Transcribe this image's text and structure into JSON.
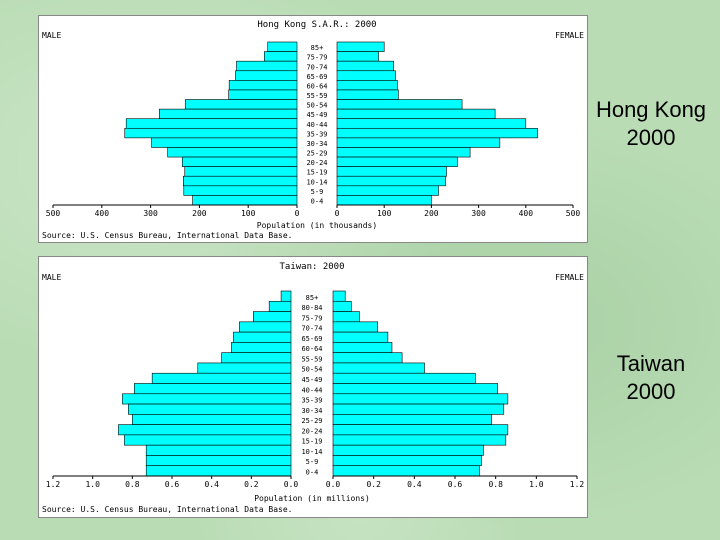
{
  "slides": [
    {
      "line1": "Hong Kong",
      "line2": "2000"
    },
    {
      "line1": "Taiwan",
      "line2": "2000"
    }
  ],
  "chart_data": [
    {
      "type": "bar",
      "title": "Hong Kong S.A.R.: 2000",
      "left_label": "MALE",
      "right_label": "FEMALE",
      "xlabel": "Population (in thousands)",
      "source": "Source: U.S. Census Bureau, International Data Base.",
      "xlim": [
        0,
        500
      ],
      "ticks": [
        "500",
        "400",
        "300",
        "200",
        "100",
        "0",
        "0",
        "100",
        "200",
        "300",
        "400",
        "500"
      ],
      "categories": [
        "85+",
        "75-79",
        "70-74",
        "65-69",
        "60-64",
        "55-59",
        "50-54",
        "45-49",
        "40-44",
        "35-39",
        "30-34",
        "25-29",
        "20-24",
        "15-19",
        "10-14",
        "5-9",
        "0-4"
      ],
      "series": [
        {
          "name": "MALE",
          "values": [
            60,
            67,
            124,
            126,
            139,
            140,
            229,
            282,
            350,
            353,
            298,
            265,
            235,
            230,
            233,
            232,
            214
          ]
        },
        {
          "name": "FEMALE",
          "values": [
            100,
            88,
            120,
            124,
            128,
            130,
            265,
            335,
            400,
            425,
            345,
            282,
            255,
            232,
            230,
            215,
            200
          ]
        }
      ],
      "colors": {
        "bar": "#00ffff",
        "stroke": "#000000"
      }
    },
    {
      "type": "bar",
      "title": "Taiwan: 2000",
      "left_label": "MALE",
      "right_label": "FEMALE",
      "xlabel": "Population (in millions)",
      "source": "Source: U.S. Census Bureau, International Data Base.",
      "xlim": [
        0,
        1.2
      ],
      "ticks": [
        "1.2",
        "1.0",
        "0.8",
        "0.6",
        "0.4",
        "0.2",
        "0.0",
        "0.0",
        "0.2",
        "0.4",
        "0.6",
        "0.8",
        "1.0",
        "1.2"
      ],
      "categories": [
        "85+",
        "80-84",
        "75-79",
        "70-74",
        "65-69",
        "60-64",
        "55-59",
        "50-54",
        "45-49",
        "40-44",
        "35-39",
        "30-34",
        "25-29",
        "20-24",
        "15-19",
        "10-14",
        "5-9",
        "0-4"
      ],
      "series": [
        {
          "name": "MALE",
          "values": [
            0.05,
            0.11,
            0.19,
            0.26,
            0.29,
            0.3,
            0.35,
            0.47,
            0.7,
            0.79,
            0.85,
            0.82,
            0.8,
            0.87,
            0.84,
            0.73,
            0.73,
            0.73
          ]
        },
        {
          "name": "FEMALE",
          "values": [
            0.06,
            0.09,
            0.13,
            0.22,
            0.27,
            0.29,
            0.34,
            0.45,
            0.7,
            0.81,
            0.86,
            0.84,
            0.78,
            0.86,
            0.85,
            0.74,
            0.73,
            0.72
          ]
        }
      ],
      "colors": {
        "bar": "#00ffff",
        "stroke": "#000000"
      }
    }
  ]
}
